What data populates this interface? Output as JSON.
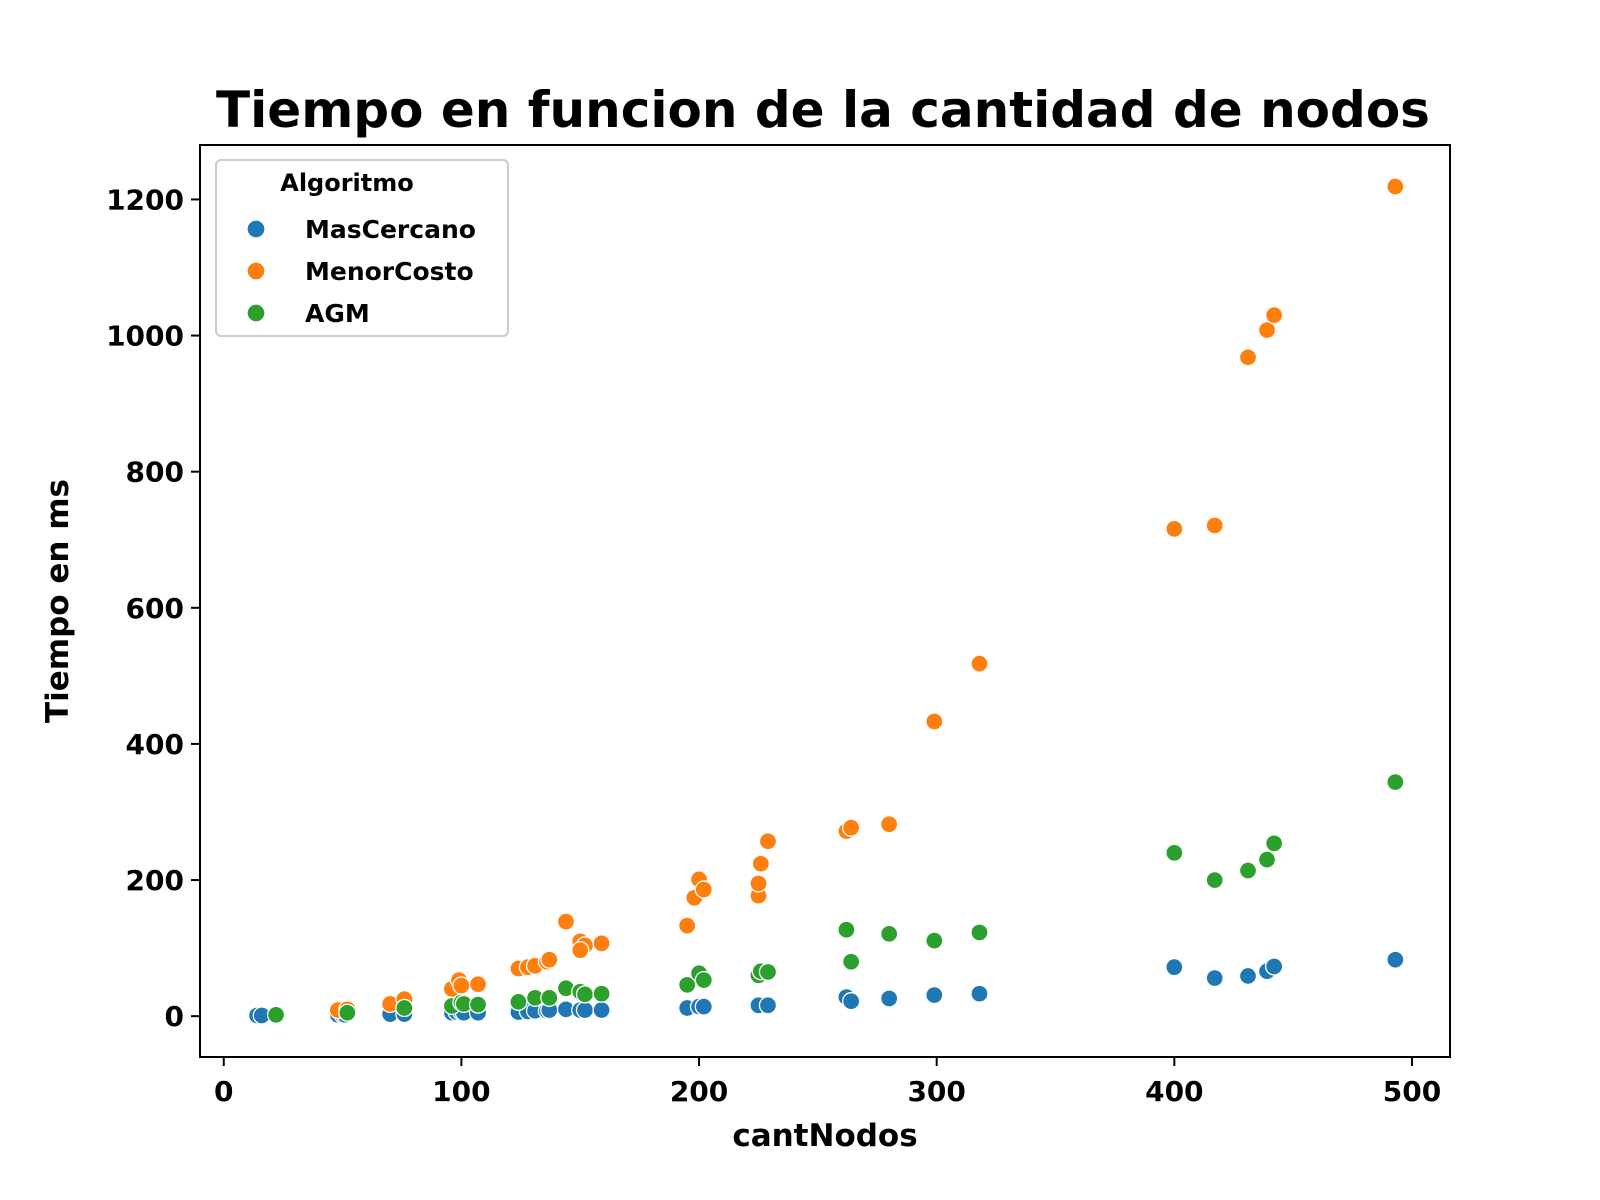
{
  "chart_data": {
    "type": "scatter",
    "title": "Tiempo en funcion de la cantidad de nodos",
    "xlabel": "cantNodos",
    "ylabel": "Tiempo en ms",
    "xlim": [
      -10,
      516
    ],
    "ylim": [
      -60,
      1280
    ],
    "xticks": [
      0,
      100,
      200,
      300,
      400,
      500
    ],
    "yticks": [
      0,
      200,
      400,
      600,
      800,
      1000,
      1200
    ],
    "grid": false,
    "legend": {
      "title": "Algoritmo",
      "position": "upper-left"
    },
    "series": [
      {
        "name": "MasCercano",
        "color": "#1f77b4",
        "points": [
          [
            14,
            1
          ],
          [
            16,
            1
          ],
          [
            48,
            2
          ],
          [
            50,
            2
          ],
          [
            51,
            2
          ],
          [
            70,
            3
          ],
          [
            76,
            3
          ],
          [
            96,
            5
          ],
          [
            98,
            6
          ],
          [
            100,
            6
          ],
          [
            101,
            5
          ],
          [
            107,
            5
          ],
          [
            124,
            6
          ],
          [
            128,
            7
          ],
          [
            131,
            8
          ],
          [
            136,
            8
          ],
          [
            137,
            9
          ],
          [
            144,
            10
          ],
          [
            150,
            9
          ],
          [
            152,
            9
          ],
          [
            159,
            9
          ],
          [
            195,
            12
          ],
          [
            200,
            14
          ],
          [
            202,
            14
          ],
          [
            225,
            16
          ],
          [
            229,
            16
          ],
          [
            262,
            28
          ],
          [
            264,
            22
          ],
          [
            280,
            26
          ],
          [
            299,
            31
          ],
          [
            318,
            33
          ],
          [
            400,
            72
          ],
          [
            417,
            56
          ],
          [
            431,
            59
          ],
          [
            439,
            66
          ],
          [
            442,
            73
          ],
          [
            493,
            83
          ]
        ]
      },
      {
        "name": "MenorCosto",
        "color": "#ff7f0e",
        "points": [
          [
            48,
            9
          ],
          [
            52,
            10
          ],
          [
            70,
            18
          ],
          [
            76,
            25
          ],
          [
            96,
            40
          ],
          [
            99,
            53
          ],
          [
            100,
            45
          ],
          [
            107,
            47
          ],
          [
            124,
            70
          ],
          [
            128,
            72
          ],
          [
            131,
            74
          ],
          [
            136,
            80
          ],
          [
            137,
            83
          ],
          [
            144,
            139
          ],
          [
            150,
            110
          ],
          [
            152,
            104
          ],
          [
            150,
            97
          ],
          [
            159,
            107
          ],
          [
            195,
            133
          ],
          [
            198,
            174
          ],
          [
            200,
            201
          ],
          [
            202,
            186
          ],
          [
            225,
            177
          ],
          [
            225,
            195
          ],
          [
            226,
            224
          ],
          [
            229,
            257
          ],
          [
            262,
            272
          ],
          [
            264,
            277
          ],
          [
            280,
            282
          ],
          [
            299,
            433
          ],
          [
            318,
            518
          ],
          [
            400,
            716
          ],
          [
            417,
            721
          ],
          [
            431,
            968
          ],
          [
            439,
            1008
          ],
          [
            442,
            1030
          ],
          [
            493,
            1219
          ]
        ]
      },
      {
        "name": "AGM",
        "color": "#2ca02c",
        "points": [
          [
            22,
            2
          ],
          [
            52,
            5
          ],
          [
            76,
            12
          ],
          [
            96,
            15
          ],
          [
            100,
            20
          ],
          [
            101,
            18
          ],
          [
            107,
            17
          ],
          [
            124,
            21
          ],
          [
            131,
            27
          ],
          [
            137,
            27
          ],
          [
            144,
            41
          ],
          [
            150,
            36
          ],
          [
            152,
            32
          ],
          [
            159,
            33
          ],
          [
            195,
            46
          ],
          [
            200,
            63
          ],
          [
            202,
            53
          ],
          [
            225,
            60
          ],
          [
            226,
            66
          ],
          [
            229,
            65
          ],
          [
            262,
            127
          ],
          [
            264,
            80
          ],
          [
            280,
            121
          ],
          [
            299,
            111
          ],
          [
            318,
            123
          ],
          [
            400,
            240
          ],
          [
            417,
            200
          ],
          [
            431,
            214
          ],
          [
            439,
            230
          ],
          [
            442,
            254
          ],
          [
            493,
            344
          ]
        ]
      }
    ]
  }
}
